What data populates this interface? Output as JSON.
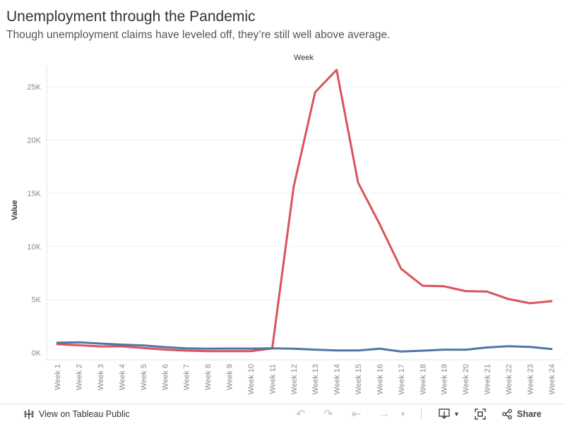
{
  "header": {
    "title": "Unemployment through the Pandemic",
    "subtitle": "Though unemployment claims have leveled off, they’re still well above average."
  },
  "chart_data": {
    "type": "line",
    "title": "Unemployment through the Pandemic",
    "subtitle": "Though unemployment claims have leveled off, they’re still well above average.",
    "xlabel": "Week",
    "ylabel": "Value",
    "categories": [
      "Week 1",
      "Week 2",
      "Week 3",
      "Week 4",
      "Week 5",
      "Week 6",
      "Week 7",
      "Week 8",
      "Week 9",
      "Week 10",
      "Week 11",
      "Week 12",
      "Week 13",
      "Week 14",
      "Week 15",
      "Week 16",
      "Week 17",
      "Week 18",
      "Week 19",
      "Week 20",
      "Week 21",
      "Week 22",
      "Week 23",
      "Week 24"
    ],
    "ylim": [
      0,
      27000
    ],
    "yticks": [
      0,
      5000,
      10000,
      15000,
      20000,
      25000
    ],
    "ytick_labels": [
      "0K",
      "5K",
      "10K",
      "15K",
      "20K",
      "25K"
    ],
    "grid": true,
    "series": [
      {
        "color": "#d9545a",
        "values": [
          800,
          700,
          600,
          600,
          450,
          300,
          200,
          150,
          150,
          150,
          400,
          15600,
          24500,
          26600,
          16000,
          12100,
          7900,
          6300,
          6250,
          5800,
          5750,
          5050,
          4650,
          4850
        ]
      },
      {
        "color": "#4e77a4",
        "values": [
          950,
          980,
          860,
          760,
          690,
          530,
          410,
          380,
          400,
          390,
          420,
          380,
          290,
          220,
          210,
          380,
          120,
          190,
          290,
          280,
          500,
          620,
          550,
          350
        ]
      }
    ]
  },
  "toolbar": {
    "view_label": "View on Tableau Public",
    "share_label": "Share"
  }
}
